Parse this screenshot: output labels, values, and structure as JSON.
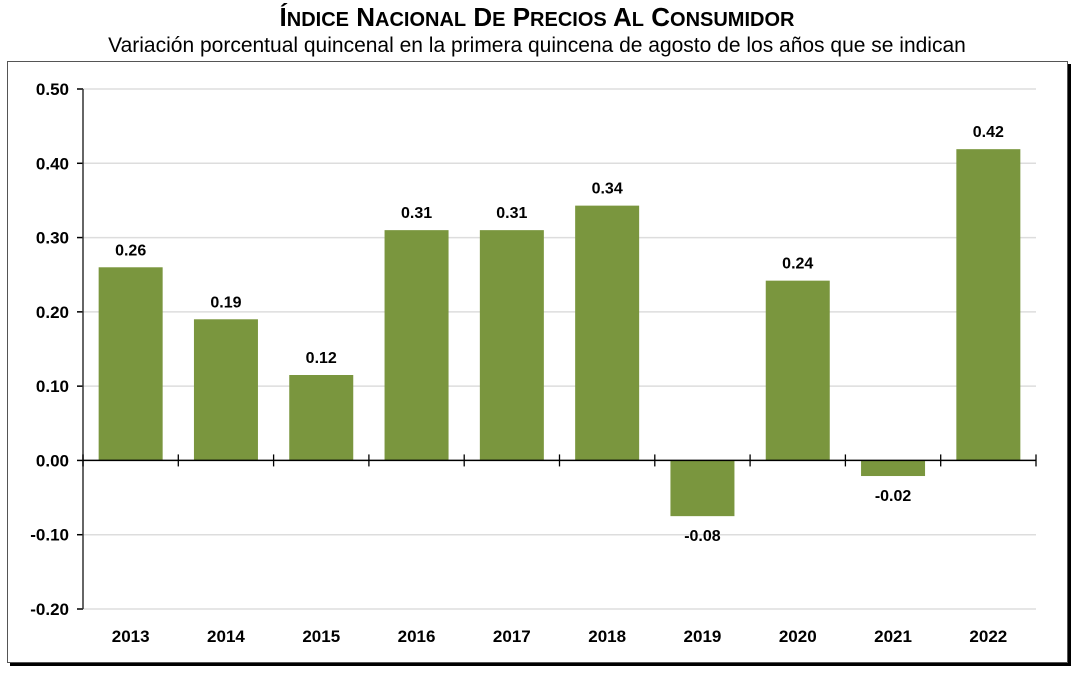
{
  "chart_data": {
    "type": "bar",
    "title": "Índice Nacional de Precios al Consumidor",
    "subtitle": "Variación porcentual quincenal en la primera quincena de agosto de los años que se indican",
    "xlabel": "",
    "ylabel": "",
    "categories": [
      "2013",
      "2014",
      "2015",
      "2016",
      "2017",
      "2018",
      "2019",
      "2020",
      "2021",
      "2022"
    ],
    "values": [
      0.26,
      0.19,
      0.12,
      0.31,
      0.31,
      0.34,
      -0.08,
      0.24,
      -0.02,
      0.42
    ],
    "bar_heights_precise": [
      0.26,
      0.19,
      0.115,
      0.31,
      0.31,
      0.343,
      -0.075,
      0.242,
      -0.021,
      0.419
    ],
    "data_labels": [
      "0.26",
      "0.19",
      "0.12",
      "0.31",
      "0.31",
      "0.34",
      "-0.08",
      "0.24",
      "-0.02",
      "0.42"
    ],
    "ylim": [
      -0.2,
      0.5
    ],
    "yticks": [
      0.5,
      0.4,
      0.3,
      0.2,
      0.1,
      0.0,
      -0.1,
      -0.2
    ],
    "ytick_labels": [
      "0.50",
      "0.40",
      "0.30",
      "0.20",
      "0.10",
      "0.00",
      "-0.10",
      "-0.20"
    ],
    "grid": true,
    "legend": "none",
    "bar_color": "#7A963E",
    "grid_color": "#DDDDDD"
  }
}
